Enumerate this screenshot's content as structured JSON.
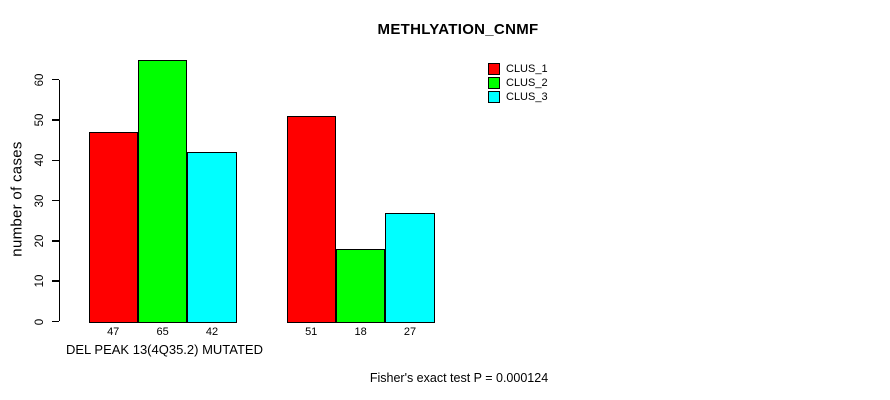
{
  "chart_data": {
    "type": "bar",
    "title": "METHLYATION_CNMF",
    "ylabel": "number of cases",
    "xlabel": "DEL PEAK 13(4Q35.2) MUTATED",
    "annotation": "Fisher's exact test P = 0.000124",
    "yticks": [
      0,
      10,
      20,
      30,
      40,
      50,
      60
    ],
    "ylim": [
      0,
      65
    ],
    "grid": false,
    "legend_position": "top-right",
    "background": "#ffffff",
    "num_groups": 2,
    "series": [
      {
        "name": "CLUS_1",
        "color": "#ff0000",
        "values": [
          47,
          51
        ]
      },
      {
        "name": "CLUS_2",
        "color": "#00ff00",
        "values": [
          65,
          18
        ]
      },
      {
        "name": "CLUS_3",
        "color": "#00ffff",
        "values": [
          42,
          27
        ]
      }
    ],
    "bar_value_labels": [
      [
        47,
        65,
        42
      ],
      [
        51,
        18,
        27
      ]
    ]
  }
}
